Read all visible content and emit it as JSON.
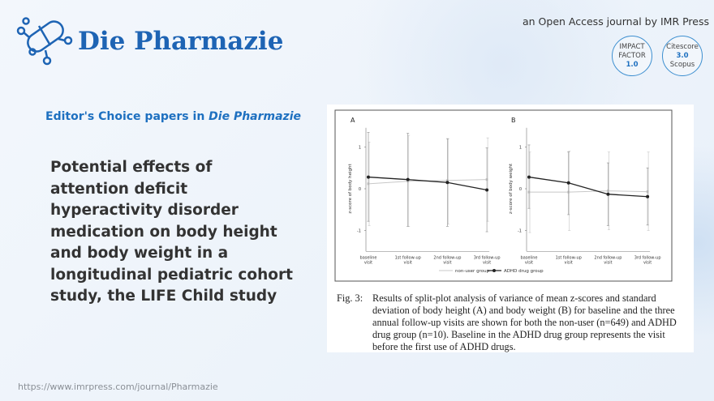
{
  "header": {
    "journal": "Die Pharmazie",
    "publisher_line": "an Open Access journal by IMR Press",
    "impact": {
      "l1": "IMPACT",
      "l2": "FACTOR",
      "v": "1.0"
    },
    "citescore": {
      "l1": "Citescore",
      "v": "3.0",
      "l2": "Scopus"
    }
  },
  "section": {
    "prefix": "Editor's Choice papers in ",
    "journal": "Die Pharmazie"
  },
  "paper_title": "Potential effects of attention deficit hyperactivity disorder medication on body height and body weight in a longitudinal pediatric cohort study, the LIFE Child study",
  "footer_url": "https://www.imrpress.com/journal/Pharmazie",
  "caption": {
    "label": "Fig. 3:",
    "text": "Results of split-plot analysis of variance of mean z-scores and standard deviation of body height (A) and body weight (B) for baseline and the three annual follow-up visits are shown for both the non-user (n=649) and ADHD drug group (n=10). Baseline in the ADHD drug group represents the visit before the first use of ADHD drugs."
  },
  "colors": {
    "accent": "#1e70c0",
    "nonuser": "#c8c8c8",
    "adhd": "#222222"
  },
  "chart_data": [
    {
      "type": "line",
      "panel": "A",
      "ylabel": "z-score of body height",
      "ylim": [
        -1.5,
        1.5
      ],
      "yticks": [
        -1,
        0,
        1
      ],
      "categories": [
        "baseline visit",
        "1st follow-up visit",
        "2nd follow-up visit",
        "3rd follow-up visit"
      ],
      "series": [
        {
          "name": "non-user group",
          "values": [
            0.12,
            0.18,
            0.2,
            0.22
          ],
          "err_low": [
            -0.88,
            -0.9,
            -0.85,
            -0.78
          ],
          "err_high": [
            1.12,
            1.28,
            1.2,
            1.22
          ]
        },
        {
          "name": "ADHD drug group",
          "values": [
            0.28,
            0.22,
            0.15,
            -0.03
          ],
          "err_low": [
            -0.78,
            -0.9,
            -0.9,
            -1.03
          ],
          "err_high": [
            1.35,
            1.33,
            1.2,
            0.98
          ]
        }
      ]
    },
    {
      "type": "line",
      "panel": "B",
      "ylabel": "z-score of body weight",
      "ylim": [
        -1.5,
        1.5
      ],
      "yticks": [
        -1,
        0,
        1
      ],
      "categories": [
        "baseline visit",
        "1st follow-up visit",
        "2nd follow-up visit",
        "3rd follow-up visit"
      ],
      "series": [
        {
          "name": "non-user group",
          "values": [
            -0.08,
            -0.08,
            -0.05,
            -0.07
          ],
          "err_low": [
            -1.05,
            -1.0,
            -0.98,
            -1.0
          ],
          "err_high": [
            0.88,
            0.9,
            0.88,
            0.88
          ]
        },
        {
          "name": "ADHD drug group",
          "values": [
            0.28,
            0.14,
            -0.13,
            -0.19
          ],
          "err_low": [
            -0.47,
            -0.62,
            -0.88,
            -0.87
          ],
          "err_high": [
            1.05,
            0.88,
            0.62,
            0.5
          ]
        }
      ]
    }
  ],
  "legend": {
    "nonuser": "non-user group",
    "adhd": "ADHD drug group"
  }
}
